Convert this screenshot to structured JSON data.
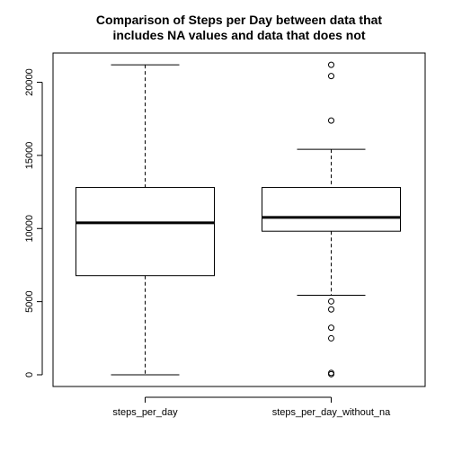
{
  "chart_data": {
    "type": "box",
    "title_lines": [
      "Comparison of Steps per Day between data that",
      "includes NA values and data that does not"
    ],
    "xlabel": "",
    "ylabel": "",
    "ylim": [
      -800,
      22000
    ],
    "y_ticks": [
      0,
      5000,
      10000,
      15000,
      20000
    ],
    "grid": false,
    "categories": [
      "steps_per_day",
      "steps_per_day_without_na"
    ],
    "boxes": [
      {
        "name": "steps_per_day",
        "whisker_low": 0,
        "q1": 6778,
        "median": 10395,
        "q3": 12811,
        "whisker_high": 21194,
        "outliers": []
      },
      {
        "name": "steps_per_day_without_na",
        "whisker_low": 5441,
        "q1": 9819,
        "median": 10765,
        "q3": 12811,
        "whisker_high": 15420,
        "outliers": [
          41,
          126,
          2492,
          3219,
          4472,
          5018,
          17382,
          20427,
          21194
        ]
      }
    ]
  }
}
